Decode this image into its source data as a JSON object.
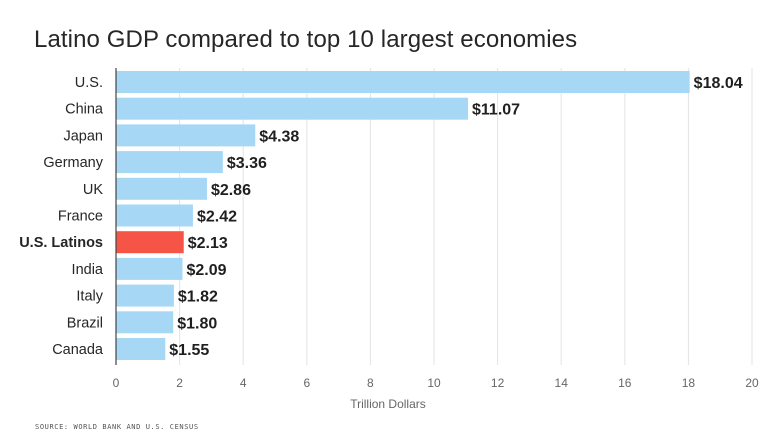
{
  "chart_data": {
    "type": "bar",
    "orientation": "horizontal",
    "title": "Latino GDP compared to top 10 largest economies",
    "xlabel": "Trillion Dollars",
    "ylabel": "",
    "xlim": [
      0,
      20
    ],
    "xticks": [
      "0",
      "2",
      "4",
      "6",
      "8",
      "10",
      "12",
      "14",
      "16",
      "18",
      "20"
    ],
    "grid": "vertical",
    "categories": [
      "U.S.",
      "China",
      "Japan",
      "Germany",
      "UK",
      "France",
      "U.S. Latinos",
      "India",
      "Italy",
      "Brazil",
      "Canada"
    ],
    "values": [
      18.04,
      11.07,
      4.38,
      3.36,
      2.86,
      2.42,
      2.13,
      2.09,
      1.82,
      1.8,
      1.55
    ],
    "value_labels": [
      "$18.04",
      "$11.07",
      "$4.38",
      "$3.36",
      "$2.86",
      "$2.42",
      "$2.13",
      "$2.09",
      "$1.82",
      "$1.80",
      "$1.55"
    ],
    "highlight": "U.S. Latinos",
    "colors": {
      "bar": "#a6d8f5",
      "highlight": "#f55447",
      "grid": "#e3e3e3",
      "axis": "#444444"
    }
  },
  "source": "SOURCE: WORLD BANK AND U.S. CENSUS"
}
